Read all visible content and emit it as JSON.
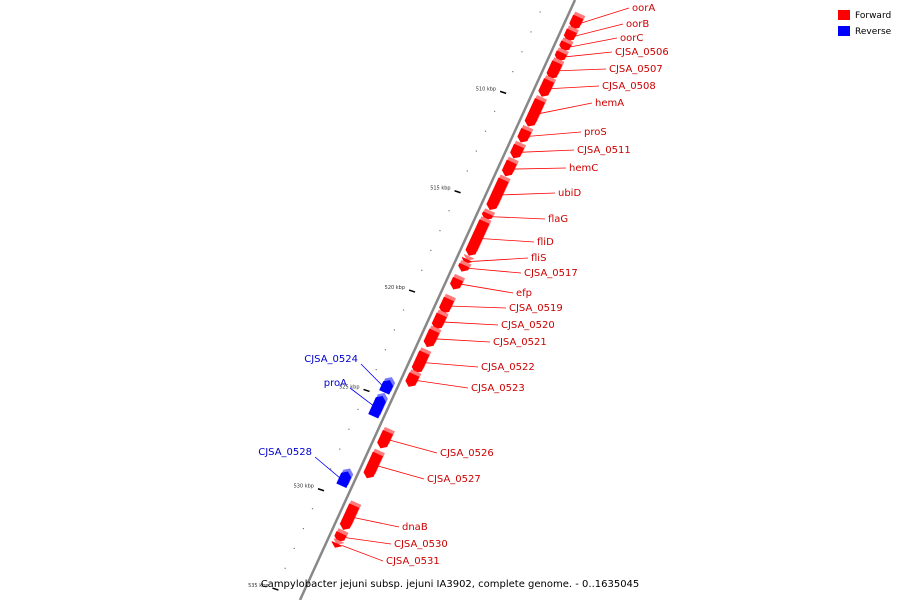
{
  "title": "Campylobacter jejuni subsp. jejuni IA3902, complete genome. - 0..1635045",
  "legend": [
    {
      "label": "Forward",
      "color": "#ff0000"
    },
    {
      "label": "Reverse",
      "color": "#0000ff"
    }
  ],
  "colors": {
    "forward": "#ff0000",
    "reverse": "#0000ff",
    "backbone": "#888888"
  },
  "ticks": [
    {
      "kbp": 510,
      "label": "510 kbp"
    },
    {
      "kbp": 515,
      "label": "515 kbp"
    },
    {
      "kbp": 520,
      "label": "520 kbp"
    },
    {
      "kbp": 525,
      "label": "525 kbp"
    },
    {
      "kbp": 530,
      "label": "530 kbp"
    },
    {
      "kbp": 535,
      "label": "535 kbp"
    }
  ],
  "genes": [
    {
      "name": "oorA",
      "strand": "forward",
      "start": 506.0,
      "end": 506.7
    },
    {
      "name": "oorB",
      "strand": "forward",
      "start": 506.7,
      "end": 507.3
    },
    {
      "name": "oorC",
      "strand": "forward",
      "start": 507.3,
      "end": 507.8
    },
    {
      "name": "CJSA_0506",
      "strand": "forward",
      "start": 507.8,
      "end": 508.3
    },
    {
      "name": "CJSA_0507",
      "strand": "forward",
      "start": 508.3,
      "end": 509.2
    },
    {
      "name": "CJSA_0508",
      "strand": "forward",
      "start": 509.2,
      "end": 510.1
    },
    {
      "name": "hemA",
      "strand": "forward",
      "start": 510.2,
      "end": 511.6
    },
    {
      "name": "proS",
      "strand": "forward",
      "start": 511.7,
      "end": 512.4
    },
    {
      "name": "CJSA_0511",
      "strand": "forward",
      "start": 512.5,
      "end": 513.2
    },
    {
      "name": "hemC",
      "strand": "forward",
      "start": 513.3,
      "end": 514.1
    },
    {
      "name": "ubiD",
      "strand": "forward",
      "start": 514.2,
      "end": 515.8
    },
    {
      "name": "flaG",
      "strand": "forward",
      "start": 515.9,
      "end": 516.3
    },
    {
      "name": "fliD",
      "strand": "forward",
      "start": 516.3,
      "end": 518.1
    },
    {
      "name": "fliS",
      "strand": "forward",
      "start": 518.2,
      "end": 518.5
    },
    {
      "name": "CJSA_0517",
      "strand": "forward",
      "start": 518.5,
      "end": 518.9
    },
    {
      "name": "efp",
      "strand": "forward",
      "start": 519.2,
      "end": 519.8
    },
    {
      "name": "CJSA_0519",
      "strand": "forward",
      "start": 520.2,
      "end": 521.0
    },
    {
      "name": "CJSA_0520",
      "strand": "forward",
      "start": 521.0,
      "end": 521.8
    },
    {
      "name": "CJSA_0521",
      "strand": "forward",
      "start": 521.8,
      "end": 522.7
    },
    {
      "name": "CJSA_0522",
      "strand": "forward",
      "start": 522.9,
      "end": 524.0
    },
    {
      "name": "CJSA_0523",
      "strand": "forward",
      "start": 524.0,
      "end": 524.7
    },
    {
      "name": "CJSA_0524",
      "strand": "reverse",
      "start": 524.7,
      "end": 525.4
    },
    {
      "name": "proA",
      "strand": "reverse",
      "start": 525.5,
      "end": 526.6
    },
    {
      "name": "CJSA_0526",
      "strand": "forward",
      "start": 526.9,
      "end": 527.8
    },
    {
      "name": "CJSA_0527",
      "strand": "forward",
      "start": 528.0,
      "end": 529.3
    },
    {
      "name": "CJSA_0528",
      "strand": "reverse",
      "start": 529.3,
      "end": 530.1
    },
    {
      "name": "dnaB",
      "strand": "forward",
      "start": 530.6,
      "end": 531.9
    },
    {
      "name": "CJSA_0530",
      "strand": "forward",
      "start": 532.0,
      "end": 532.5
    },
    {
      "name": "CJSA_0531",
      "strand": "forward",
      "start": 532.5,
      "end": 532.8
    }
  ]
}
